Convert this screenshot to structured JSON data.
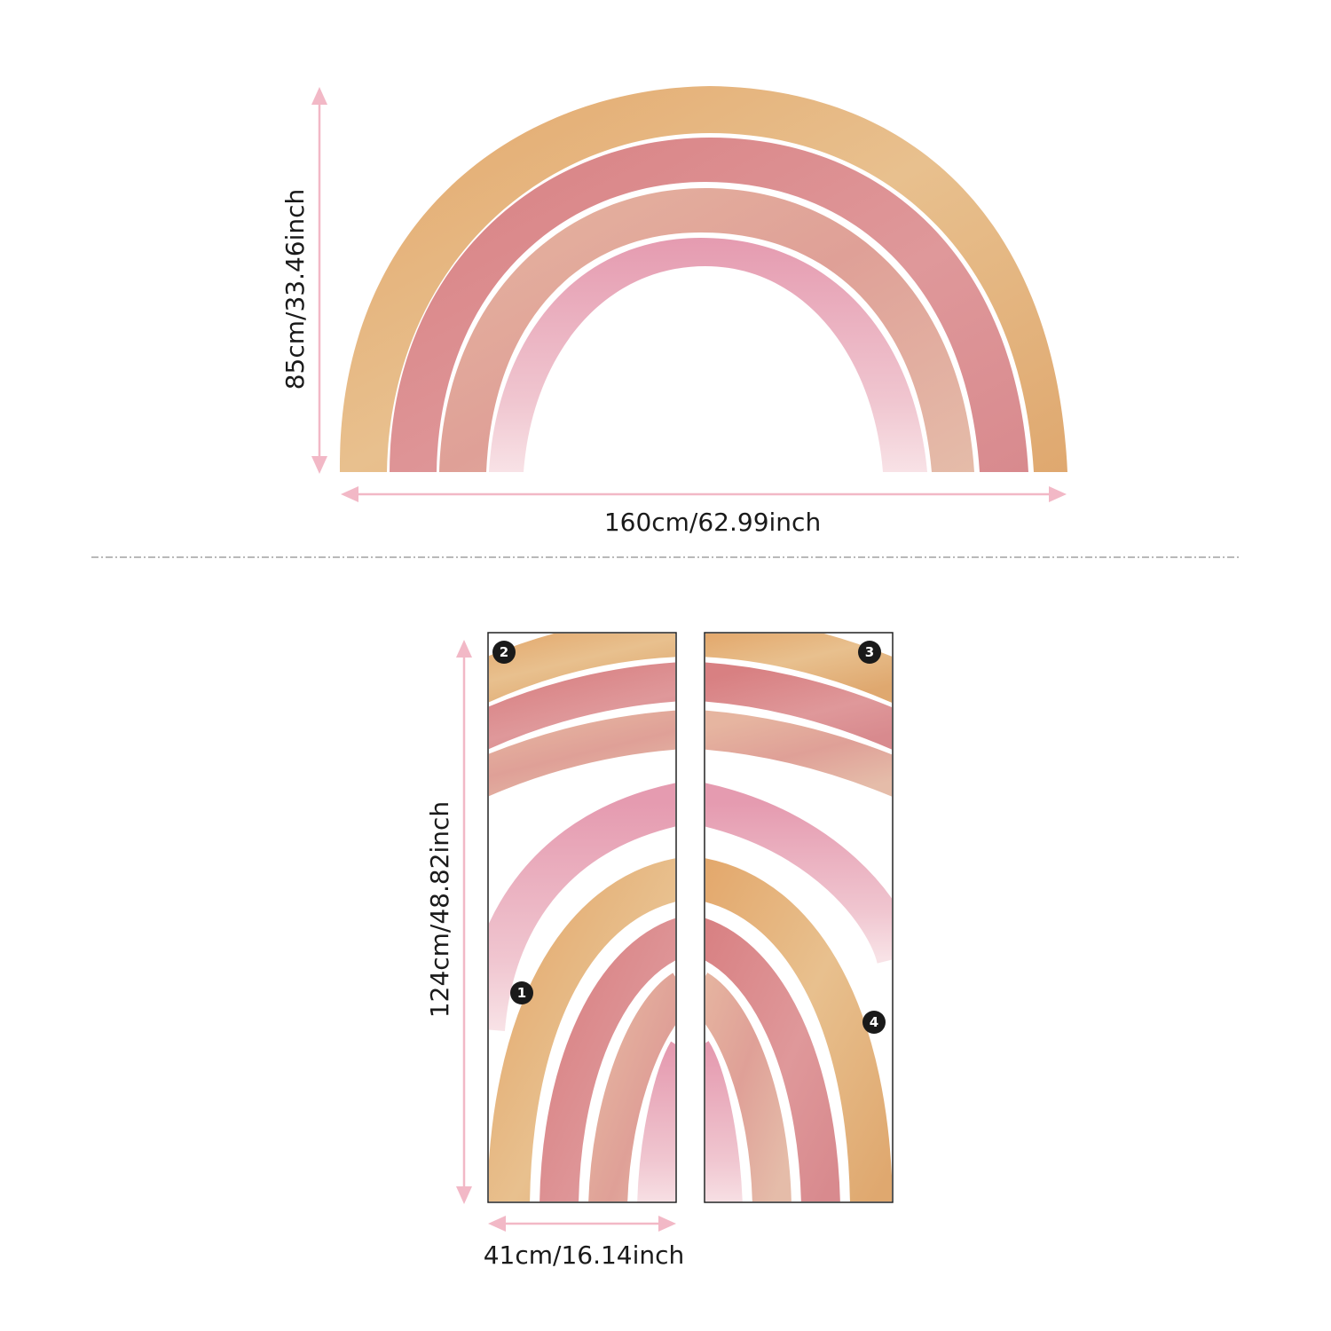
{
  "rainbow": {
    "width_label": "160cm/62.99inch",
    "height_label": "85cm/33.46inch",
    "colors": {
      "outer": "#e4b37f",
      "second": "#dc8d91",
      "third": "#e2aa9a",
      "inner": "#e8b3c0",
      "gap": "#ffffff"
    }
  },
  "panels": {
    "width_label": "41cm/16.14inch",
    "height_label": "124cm/48.82inch",
    "badges": [
      "1",
      "2",
      "3",
      "4"
    ]
  },
  "arrow_color": "#f2b8c6",
  "divider_color": "#b9b9b9"
}
